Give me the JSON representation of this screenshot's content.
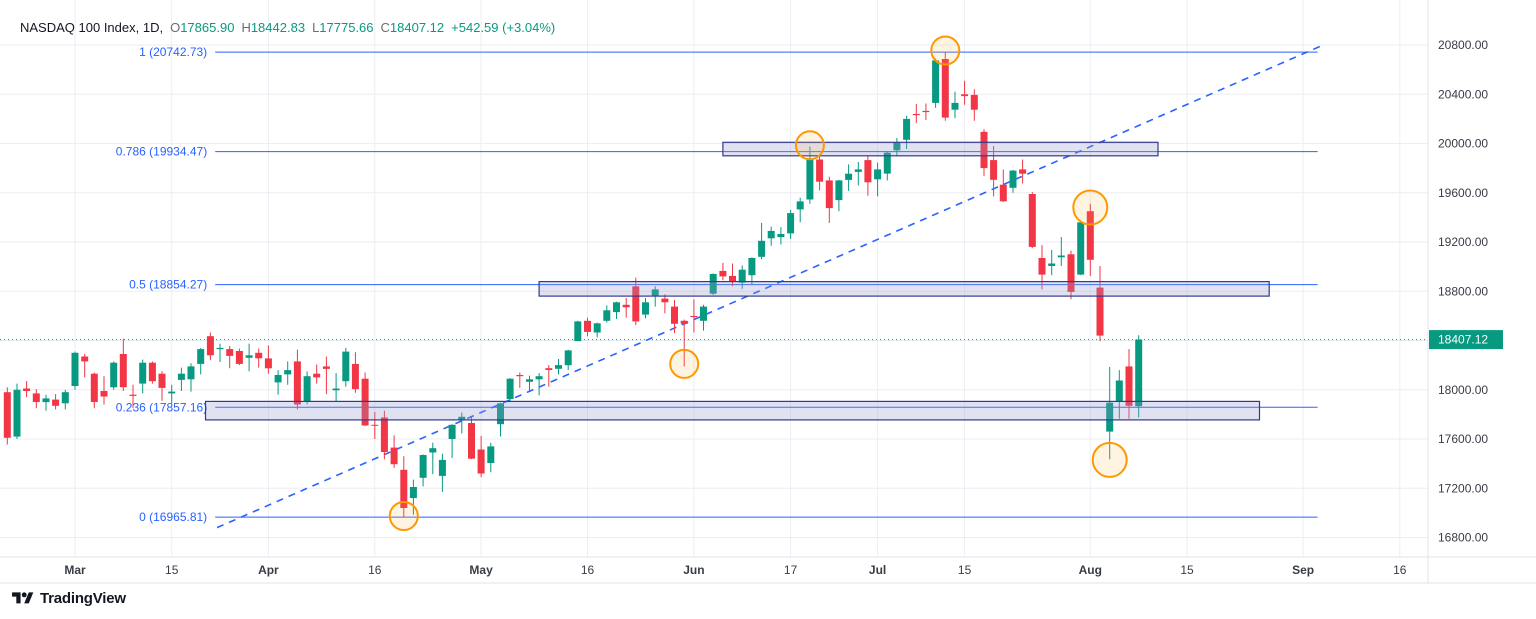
{
  "legend": {
    "title": "NASDAQ 100 Index, 1D,",
    "symbol": "NASDAQ 100 Index",
    "interval": "1D",
    "o_label": "O",
    "o": "17865.90",
    "h_label": "H",
    "h": "18442.83",
    "l_label": "L",
    "l": "17775.66",
    "c_label": "C",
    "c": "18407.12",
    "change": "+542.59 (+3.04%)"
  },
  "footer": {
    "brand": "TradingView"
  },
  "colors": {
    "up": "#089981",
    "down": "#F23645",
    "fib_blue": "#2962FF",
    "grid": "#EBEEF3",
    "pane_border": "#E0E3EB",
    "axis_text": "#383C46",
    "zone_fill": "rgba(149,152,205,0.28)",
    "zone_border": "#363A8C",
    "circle_stroke": "#FF9800",
    "circle_fill": "rgba(255,173,51,0.15)",
    "price_label_text": "#FFFFFF"
  },
  "chart_data": {
    "type": "candlestick",
    "title": "NASDAQ 100 Index",
    "interval": "1D",
    "visible_price_range": [
      16642,
      21165
    ],
    "grid": true,
    "price_axis": {
      "tick_step": 400,
      "ticks": [
        {
          "value": 20800,
          "label": "20800.00"
        },
        {
          "value": 20400,
          "label": "20400.00"
        },
        {
          "value": 20000,
          "label": "20000.00"
        },
        {
          "value": 19600,
          "label": "19600.00"
        },
        {
          "value": 19200,
          "label": "19200.00"
        },
        {
          "value": 18800,
          "label": "18800.00"
        },
        {
          "value": 18400,
          "label": "18400.00"
        },
        {
          "value": 18000,
          "label": "18000.00"
        },
        {
          "value": 17600,
          "label": "17600.00"
        },
        {
          "value": 17200,
          "label": "17200.00"
        },
        {
          "value": 16800,
          "label": "16800.00"
        }
      ]
    },
    "time_axis": {
      "ticks": [
        {
          "label": "Mar",
          "idx": 7,
          "major": true
        },
        {
          "label": "15",
          "idx": 17,
          "major": false
        },
        {
          "label": "Apr",
          "idx": 27,
          "major": true
        },
        {
          "label": "16",
          "idx": 38,
          "major": false
        },
        {
          "label": "May",
          "idx": 49,
          "major": true
        },
        {
          "label": "16",
          "idx": 60,
          "major": false
        },
        {
          "label": "Jun",
          "idx": 71,
          "major": true
        },
        {
          "label": "17",
          "idx": 81,
          "major": false
        },
        {
          "label": "Jul",
          "idx": 90,
          "major": true
        },
        {
          "label": "15",
          "idx": 99,
          "major": false
        },
        {
          "label": "Aug",
          "idx": 112,
          "major": true
        },
        {
          "label": "15",
          "idx": 122,
          "major": false
        },
        {
          "label": "Sep",
          "idx": 134,
          "major": true
        },
        {
          "label": "16",
          "idx": 144,
          "major": false
        }
      ]
    },
    "fib": {
      "idx_start": 21.5,
      "idx_end": 135.5,
      "levels": [
        {
          "ratio": "1",
          "value": 20742.73,
          "label": "1 (20742.73)"
        },
        {
          "ratio": "0.786",
          "value": 19934.47,
          "label": "0.786 (19934.47)"
        },
        {
          "ratio": "0.5",
          "value": 18854.27,
          "label": "0.5 (18854.27)"
        },
        {
          "ratio": "0.236",
          "value": 17857.16,
          "label": "0.236 (17857.16)"
        },
        {
          "ratio": "0",
          "value": 16965.81,
          "label": "0 (16965.81)"
        }
      ]
    },
    "trendline": {
      "idx1": 21.7,
      "price1": 16880,
      "idx2": 135.8,
      "price2": 20790,
      "style": "dashed"
    },
    "zones": [
      {
        "idx_start": 74,
        "idx_end": 119,
        "price_top": 20010,
        "price_bottom": 19900
      },
      {
        "idx_start": 55,
        "idx_end": 130.5,
        "price_top": 18878,
        "price_bottom": 18760
      },
      {
        "idx_start": 20.5,
        "idx_end": 129.5,
        "price_top": 17905,
        "price_bottom": 17755
      }
    ],
    "circles": [
      {
        "idx": 97,
        "price": 20755,
        "r": 14
      },
      {
        "idx": 83,
        "price": 19985,
        "r": 14
      },
      {
        "idx": 112,
        "price": 19480,
        "r": 17
      },
      {
        "idx": 70,
        "price": 18210,
        "r": 14
      },
      {
        "idx": 114,
        "price": 17430,
        "r": 17
      },
      {
        "idx": 41,
        "price": 16975,
        "r": 14
      }
    ],
    "last_price": {
      "price": 18407.12,
      "label": "18407.12",
      "direction": "up"
    },
    "candles": [
      [
        "Feb 21",
        17980,
        18020,
        17555,
        17610
      ],
      [
        "Feb 22",
        17620,
        18050,
        17600,
        18000
      ],
      [
        "Feb 23",
        18010,
        18070,
        17940,
        17990
      ],
      [
        "Feb 26",
        17970,
        18005,
        17850,
        17900
      ],
      [
        "Feb 27",
        17900,
        17960,
        17830,
        17930
      ],
      [
        "Feb 28",
        17920,
        17965,
        17840,
        17870
      ],
      [
        "Feb 29",
        17890,
        18000,
        17840,
        17980
      ],
      [
        "Mar 1",
        18030,
        18310,
        18000,
        18300
      ],
      [
        "Mar 4",
        18270,
        18290,
        18100,
        18230
      ],
      [
        "Mar 5",
        18130,
        18140,
        17850,
        17900
      ],
      [
        "Mar 6",
        17990,
        18110,
        17880,
        17945
      ],
      [
        "Mar 7",
        18020,
        18230,
        18000,
        18220
      ],
      [
        "Mar 8",
        18290,
        18415,
        17990,
        18020
      ],
      [
        "Mar 11",
        17960,
        18040,
        17850,
        17950
      ],
      [
        "Mar 12",
        18050,
        18245,
        17970,
        18220
      ],
      [
        "Mar 13",
        18220,
        18230,
        18050,
        18070
      ],
      [
        "Mar 14",
        18130,
        18150,
        17910,
        18015
      ],
      [
        "Mar 15",
        17970,
        18040,
        17890,
        17985
      ],
      [
        "Mar 18",
        18080,
        18180,
        17990,
        18130
      ],
      [
        "Mar 19",
        18085,
        18215,
        17985,
        18190
      ],
      [
        "Mar 20",
        18210,
        18340,
        18125,
        18330
      ],
      [
        "Mar 21",
        18435,
        18465,
        18240,
        18280
      ],
      [
        "Mar 22",
        18330,
        18375,
        18225,
        18340
      ],
      [
        "Mar 25",
        18330,
        18355,
        18175,
        18275
      ],
      [
        "Mar 26",
        18315,
        18335,
        18200,
        18210
      ],
      [
        "Mar 27",
        18260,
        18375,
        18150,
        18280
      ],
      [
        "Mar 28",
        18300,
        18335,
        18180,
        18255
      ],
      [
        "Apr 1",
        18255,
        18360,
        18130,
        18175
      ],
      [
        "Apr 2",
        18060,
        18160,
        17960,
        18120
      ],
      [
        "Apr 3",
        18125,
        18230,
        18040,
        18160
      ],
      [
        "Apr 4",
        18230,
        18325,
        17840,
        17880
      ],
      [
        "Apr 5",
        17905,
        18150,
        17880,
        18110
      ],
      [
        "Apr 8",
        18130,
        18205,
        18050,
        18100
      ],
      [
        "Apr 9",
        18190,
        18270,
        17965,
        18170
      ],
      [
        "Apr 10",
        17995,
        18135,
        17905,
        18010
      ],
      [
        "Apr 11",
        18070,
        18340,
        18025,
        18310
      ],
      [
        "Apr 12",
        18210,
        18305,
        17975,
        18005
      ],
      [
        "Apr 15",
        18090,
        18140,
        17705,
        17710
      ],
      [
        "Apr 16",
        17715,
        17820,
        17600,
        17712
      ],
      [
        "Apr 17",
        17775,
        17830,
        17435,
        17495
      ],
      [
        "Apr 18",
        17530,
        17630,
        17365,
        17395
      ],
      [
        "Apr 19",
        17350,
        17460,
        16966,
        17040
      ],
      [
        "Apr 22",
        17120,
        17270,
        16985,
        17210
      ],
      [
        "Apr 23",
        17285,
        17475,
        17215,
        17470
      ],
      [
        "Apr 24",
        17490,
        17570,
        17315,
        17525
      ],
      [
        "Apr 25",
        17300,
        17480,
        17170,
        17430
      ],
      [
        "Apr 26",
        17600,
        17720,
        17445,
        17715
      ],
      [
        "Apr 29",
        17750,
        17815,
        17645,
        17780
      ],
      [
        "Apr 30",
        17730,
        17775,
        17435,
        17440
      ],
      [
        "May 1",
        17515,
        17625,
        17290,
        17320
      ],
      [
        "May 2",
        17405,
        17570,
        17330,
        17540
      ],
      [
        "May 3",
        17720,
        17895,
        17620,
        17890
      ],
      [
        "May 6",
        17925,
        18095,
        17900,
        18090
      ],
      [
        "May 7",
        18120,
        18140,
        18015,
        18110
      ],
      [
        "May 8",
        18065,
        18115,
        17985,
        18085
      ],
      [
        "May 9",
        18085,
        18135,
        17955,
        18110
      ],
      [
        "May 10",
        18175,
        18200,
        18025,
        18160
      ],
      [
        "May 13",
        18170,
        18250,
        18125,
        18200
      ],
      [
        "May 14",
        18200,
        18325,
        18160,
        18320
      ],
      [
        "May 15",
        18395,
        18560,
        18395,
        18555
      ],
      [
        "May 16",
        18560,
        18585,
        18435,
        18470
      ],
      [
        "May 17",
        18465,
        18545,
        18425,
        18540
      ],
      [
        "May 20",
        18560,
        18685,
        18545,
        18645
      ],
      [
        "May 21",
        18630,
        18715,
        18575,
        18710
      ],
      [
        "May 22",
        18690,
        18745,
        18585,
        18670
      ],
      [
        "May 23",
        18840,
        18910,
        18525,
        18555
      ],
      [
        "May 24",
        18610,
        18745,
        18580,
        18710
      ],
      [
        "May 28",
        18760,
        18840,
        18675,
        18815
      ],
      [
        "May 29",
        18740,
        18775,
        18620,
        18710
      ],
      [
        "May 30",
        18675,
        18730,
        18460,
        18535
      ],
      [
        "May 31",
        18560,
        18570,
        18190,
        18535
      ],
      [
        "Jun 3",
        18600,
        18735,
        18465,
        18590
      ],
      [
        "Jun 4",
        18560,
        18690,
        18480,
        18675
      ],
      [
        "Jun 5",
        18780,
        18945,
        18770,
        18940
      ],
      [
        "Jun 6",
        18965,
        19030,
        18890,
        18920
      ],
      [
        "Jun 7",
        18925,
        19025,
        18840,
        18880
      ],
      [
        "Jun 10",
        18870,
        19010,
        18820,
        18975
      ],
      [
        "Jun 11",
        18930,
        19075,
        18850,
        19070
      ],
      [
        "Jun 12",
        19080,
        19355,
        19060,
        19210
      ],
      [
        "Jun 13",
        19230,
        19325,
        19170,
        19290
      ],
      [
        "Jun 14",
        19240,
        19320,
        19180,
        19265
      ],
      [
        "Jun 17",
        19270,
        19460,
        19225,
        19435
      ],
      [
        "Jun 18",
        19465,
        19560,
        19360,
        19530
      ],
      [
        "Jun 20",
        19545,
        19975,
        19510,
        19880
      ],
      [
        "Jun 21",
        19870,
        19910,
        19620,
        19690
      ],
      [
        "Jun 24",
        19700,
        19730,
        19355,
        19475
      ],
      [
        "Jun 25",
        19540,
        19705,
        19450,
        19700
      ],
      [
        "Jun 26",
        19705,
        19830,
        19615,
        19755
      ],
      [
        "Jun 27",
        19770,
        19850,
        19660,
        19790
      ],
      [
        "Jun 28",
        19865,
        19900,
        19575,
        19685
      ],
      [
        "Jul 1",
        19710,
        19845,
        19570,
        19790
      ],
      [
        "Jul 2",
        19755,
        19930,
        19700,
        19925
      ],
      [
        "Jul 3",
        19945,
        20045,
        19895,
        20010
      ],
      [
        "Jul 5",
        20030,
        20225,
        19955,
        20200
      ],
      [
        "Jul 8",
        20240,
        20320,
        20165,
        20230
      ],
      [
        "Jul 9",
        20265,
        20325,
        20190,
        20255
      ],
      [
        "Jul 10",
        20330,
        20690,
        20290,
        20675
      ],
      [
        "Jul 11",
        20686,
        20743,
        20185,
        20210
      ],
      [
        "Jul 12",
        20275,
        20420,
        20205,
        20330
      ],
      [
        "Jul 15",
        20400,
        20510,
        20315,
        20385
      ],
      [
        "Jul 16",
        20395,
        20440,
        20185,
        20275
      ],
      [
        "Jul 17",
        20095,
        20115,
        19735,
        19800
      ],
      [
        "Jul 18",
        19865,
        19980,
        19570,
        19705
      ],
      [
        "Jul 19",
        19665,
        19790,
        19525,
        19530
      ],
      [
        "Jul 22",
        19640,
        19785,
        19600,
        19780
      ],
      [
        "Jul 23",
        19790,
        19870,
        19675,
        19755
      ],
      [
        "Jul 24",
        19590,
        19605,
        19150,
        19160
      ],
      [
        "Jul 25",
        19070,
        19175,
        18815,
        18935
      ],
      [
        "Jul 26",
        19005,
        19135,
        18930,
        19025
      ],
      [
        "Jul 29",
        19075,
        19240,
        19005,
        19090
      ],
      [
        "Jul 30",
        19100,
        19130,
        18735,
        18795
      ],
      [
        "Jul 31",
        18935,
        19365,
        18930,
        19360
      ],
      [
        "Aug 1",
        19450,
        19510,
        18925,
        19055
      ],
      [
        "Aug 2",
        18830,
        19005,
        18395,
        18440
      ],
      [
        "Aug 5",
        17660,
        18185,
        17435,
        17895
      ],
      [
        "Aug 6",
        17900,
        18160,
        17765,
        18075
      ],
      [
        "Aug 7",
        18190,
        18330,
        17765,
        17870
      ],
      [
        "Aug 8",
        17865.9,
        18442.83,
        17775.66,
        18407.12
      ]
    ]
  }
}
